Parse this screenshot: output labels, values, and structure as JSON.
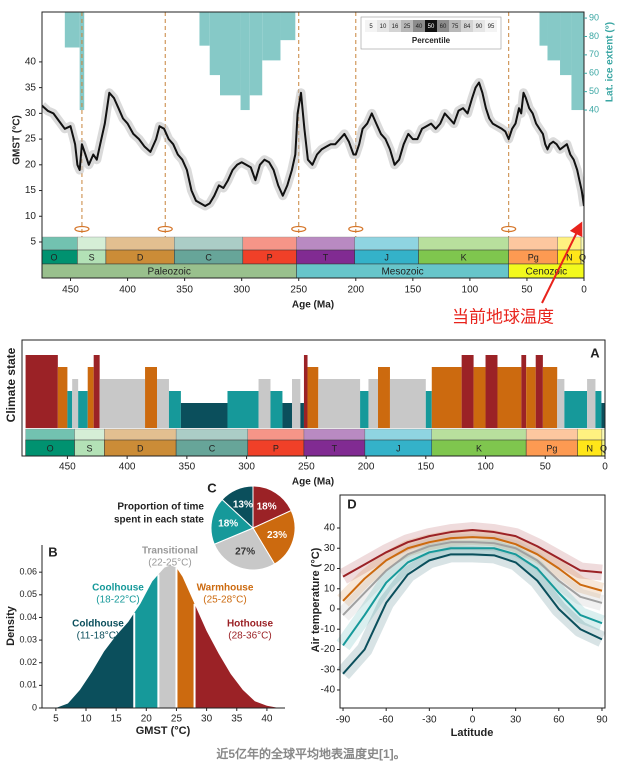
{
  "caption": "近5亿年的全球平均地表温度史[1]。",
  "chart_data": [
    {
      "type": "line",
      "y_label": "GMST (°C)",
      "x_label": "Age (Ma)",
      "y2_label": "Lat. ice extent (°)",
      "xlim": [
        475,
        0
      ],
      "xticks": [
        450,
        400,
        350,
        300,
        250,
        200,
        150,
        100,
        50,
        0
      ],
      "ylim": [
        -2,
        49.7
      ],
      "yticks": [
        5,
        10,
        15,
        20,
        25,
        30,
        35,
        40
      ],
      "y2lim": [
        -51.3,
        93.3
      ],
      "y2ticks": [
        40,
        50,
        60,
        70,
        80,
        90
      ],
      "color": "#111111",
      "x": [
        475,
        470,
        465,
        460,
        455,
        450,
        446,
        444,
        442,
        440,
        437,
        434,
        430,
        427,
        424,
        420,
        416,
        412,
        408,
        404,
        400,
        395,
        390,
        385,
        380,
        375,
        372,
        368,
        364,
        360,
        356,
        352,
        348,
        344,
        340,
        336,
        332,
        328,
        324,
        320,
        316,
        312,
        308,
        304,
        300,
        296,
        292,
        288,
        284,
        280,
        276,
        272,
        268,
        264,
        260,
        256,
        253,
        251,
        248,
        245,
        242,
        238,
        234,
        230,
        226,
        222,
        218,
        214,
        210,
        206,
        202,
        200,
        197,
        194,
        190,
        186,
        182,
        178,
        174,
        170,
        166,
        162,
        158,
        154,
        150,
        146,
        142,
        138,
        134,
        130,
        126,
        122,
        118,
        114,
        110,
        106,
        102,
        98,
        95,
        92,
        89,
        86,
        83,
        80,
        76,
        72,
        69,
        66,
        63,
        60,
        57,
        55,
        53,
        51,
        48,
        45,
        42,
        39,
        36,
        34,
        32,
        30,
        27,
        24,
        21,
        18,
        15,
        12,
        9,
        6,
        4,
        2,
        0
      ],
      "values": [
        31.5,
        30.5,
        30,
        28.5,
        27,
        27.5,
        24,
        20,
        19,
        24,
        22,
        20,
        22,
        21,
        24,
        28,
        34,
        33,
        31,
        29,
        28,
        26,
        25,
        23.5,
        22.5,
        25,
        27.5,
        27,
        25,
        24,
        22,
        21,
        19,
        15,
        13,
        12.5,
        12,
        12.5,
        14,
        16,
        15.5,
        17,
        19,
        20,
        20.5,
        20,
        19.5,
        17,
        20,
        21,
        20.5,
        19,
        16,
        14,
        16,
        19,
        22,
        30,
        34,
        27,
        21,
        20,
        22,
        23,
        23.5,
        24,
        24,
        25,
        26,
        24.5,
        22,
        22,
        24,
        27,
        28,
        30,
        28,
        26,
        25,
        23,
        20,
        21,
        24,
        26,
        25,
        25,
        27,
        27.5,
        28,
        27,
        28,
        30,
        29,
        28,
        30.5,
        31,
        30,
        33,
        35,
        36,
        34,
        31,
        29,
        28,
        27.5,
        27,
        26.5,
        25,
        27,
        28,
        31,
        30,
        34,
        33,
        31,
        30,
        28,
        27,
        26,
        24,
        23,
        24,
        24.5,
        24,
        23,
        23.5,
        24,
        22,
        21,
        19,
        17,
        15,
        12
      ],
      "ice_extent": {
        "axis": "y2",
        "color": "#86c9c7",
        "starts": [
          455,
          442,
          337,
          328,
          319,
          301,
          293,
          282,
          266,
          39,
          32,
          21,
          11
        ],
        "ends": [
          442,
          438,
          328,
          319,
          301,
          293,
          282,
          266,
          253,
          32,
          21,
          11,
          0
        ],
        "values": [
          74,
          40,
          75,
          59,
          48,
          40,
          48,
          67,
          78,
          75,
          67,
          59,
          40
        ]
      },
      "extinctions": [
        440,
        367,
        250,
        200,
        66
      ],
      "periods": {
        "labels": [
          "O",
          "S",
          "D",
          "C",
          "P",
          "T",
          "J",
          "K",
          "Pg",
          "N",
          "Q"
        ],
        "starts": [
          485,
          444,
          419,
          359,
          299,
          252,
          201,
          145,
          66,
          23,
          2.6
        ],
        "ends": [
          444,
          419,
          359,
          299,
          252,
          201,
          145,
          66,
          23,
          2.6,
          0
        ],
        "colors": [
          "#009270",
          "#b3e1b6",
          "#cb8c37",
          "#67a599",
          "#f04028",
          "#812b92",
          "#34b2c9",
          "#7fc64e",
          "#fd9a52",
          "#ffe619",
          "#f9f97f"
        ]
      },
      "eras": {
        "labels": [
          "Paleozoic",
          "Mesozoic",
          "Cenozoic"
        ],
        "starts": [
          485,
          252,
          66
        ],
        "ends": [
          252,
          66,
          0
        ],
        "colors": [
          "#99c08d",
          "#67c5ca",
          "#f2f91d"
        ]
      },
      "percentile_legend": {
        "title": "Percentile",
        "labels": [
          5,
          10,
          16,
          25,
          40,
          50,
          60,
          75,
          84,
          90,
          95
        ],
        "colors": [
          "#f4f4f4",
          "#e6e6e6",
          "#d4d4d4",
          "#b8b8b8",
          "#8c8c8c",
          "#111111",
          "#8c8c8c",
          "#b8b8b8",
          "#d4d4d4",
          "#e6e6e6",
          "#f4f4f4"
        ]
      },
      "annotation": "当前地球温度"
    },
    {
      "type": "bar",
      "label": "A",
      "y_label": "Climate state",
      "x_label": "Age (Ma)",
      "xlim": [
        488,
        0
      ],
      "xticks": [
        450,
        400,
        350,
        300,
        250,
        200,
        150,
        100,
        50,
        0
      ],
      "palette": [
        "#0b4f5c",
        "#16999a",
        "#c8c8c8",
        "#cc6a0f",
        "#9b2226"
      ],
      "starts": [
        485,
        458,
        450,
        446,
        441,
        433,
        428,
        423,
        385,
        375,
        365,
        355,
        316,
        290,
        280,
        270,
        262,
        255,
        252,
        249,
        240,
        205,
        198,
        190,
        180,
        150,
        145,
        120,
        110,
        100,
        90,
        70,
        66,
        58,
        52,
        40,
        34,
        15,
        8,
        3
      ],
      "ends": [
        458,
        450,
        446,
        441,
        433,
        428,
        423,
        385,
        375,
        365,
        355,
        316,
        290,
        280,
        270,
        262,
        255,
        252,
        249,
        240,
        205,
        198,
        190,
        180,
        150,
        145,
        120,
        110,
        100,
        90,
        70,
        66,
        58,
        52,
        40,
        34,
        15,
        8,
        3,
        0
      ],
      "values": [
        5,
        4,
        2,
        3,
        2,
        4,
        5,
        3,
        4,
        3,
        2,
        1,
        2,
        3,
        2,
        1,
        3,
        1,
        5,
        4,
        3,
        2,
        3,
        4,
        3,
        2,
        4,
        5,
        4,
        5,
        4,
        5,
        4,
        5,
        4,
        3,
        2,
        3,
        2,
        1
      ]
    },
    {
      "type": "pie",
      "label": "C",
      "title_lines": [
        "Proportion of time",
        "spent in each state"
      ],
      "values": [
        18,
        23,
        27,
        18,
        13
      ],
      "value_labels": [
        "18%",
        "23%",
        "27%",
        "18%",
        "13%"
      ],
      "colors": [
        "#9b2226",
        "#cc6a0f",
        "#c8c8c8",
        "#16999a",
        "#0b4f5c"
      ]
    },
    {
      "type": "area",
      "label": "B",
      "x_label": "GMST (°C)",
      "y_label": "Density",
      "xlim": [
        2.7,
        43
      ],
      "xticks": [
        5,
        10,
        15,
        20,
        25,
        30,
        35,
        40
      ],
      "ylim": [
        0,
        0.072
      ],
      "yticks": [
        0,
        0.01,
        0.02,
        0.03,
        0.04,
        0.05,
        0.06
      ],
      "x": [
        5,
        7,
        9,
        11,
        13,
        15,
        17,
        18,
        19,
        20,
        21,
        22,
        23,
        24,
        25,
        26,
        27,
        28,
        29,
        30,
        32,
        34,
        36,
        38,
        40,
        42
      ],
      "values": [
        0,
        0.002,
        0.008,
        0.016,
        0.025,
        0.032,
        0.038,
        0.042,
        0.046,
        0.051,
        0.056,
        0.059,
        0.062,
        0.063,
        0.062,
        0.058,
        0.052,
        0.046,
        0.04,
        0.034,
        0.024,
        0.015,
        0.008,
        0.003,
        0.001,
        0
      ],
      "boundaries": [
        18,
        22,
        25,
        28
      ],
      "states": [
        {
          "name": "Coldhouse",
          "range": "(11-18°C)",
          "color": "#0b4f5c"
        },
        {
          "name": "Coolhouse",
          "range": "(18-22°C)",
          "color": "#16999a"
        },
        {
          "name": "Transitional",
          "range": "(22-25°C)",
          "color": "#c8c8c8"
        },
        {
          "name": "Warmhouse",
          "range": "(25-28°C)",
          "color": "#cc6a0f"
        },
        {
          "name": "Hothouse",
          "range": "(28-36°C)",
          "color": "#9b2226"
        }
      ]
    },
    {
      "type": "line",
      "label": "D",
      "x_label": "Latitude",
      "y_label": "Air temperature (°C)",
      "xlim": [
        -92.1,
        92.1
      ],
      "xticks": [
        -90,
        -60,
        -30,
        0,
        30,
        60,
        90
      ],
      "ylim": [
        -48.9,
        56.3
      ],
      "yticks": [
        -40,
        -30,
        -20,
        -10,
        0,
        10,
        20,
        30,
        40
      ],
      "x": [
        -90,
        -75,
        -60,
        -45,
        -30,
        -15,
        0,
        15,
        30,
        45,
        60,
        75,
        90
      ],
      "series": [
        {
          "color": "#9b2226",
          "values": [
            16,
            22,
            28,
            33,
            36,
            38,
            39,
            38,
            36,
            31,
            25,
            19,
            18
          ]
        },
        {
          "color": "#cc6a0f",
          "values": [
            4,
            15,
            24,
            30,
            33,
            35,
            35.5,
            35,
            32,
            27,
            20,
            12,
            9
          ]
        },
        {
          "color": "#a0a0a0",
          "values": [
            -3,
            8,
            19,
            27,
            31,
            33,
            33,
            32.5,
            30,
            24,
            14,
            6,
            3
          ]
        },
        {
          "color": "#16999a",
          "values": [
            -18,
            -3,
            13,
            23,
            28,
            30,
            30,
            30,
            27,
            20,
            8,
            -3,
            -7
          ]
        },
        {
          "color": "#0b4f5c",
          "values": [
            -32,
            -20,
            3,
            17,
            24,
            27,
            27,
            26.5,
            23,
            14,
            0,
            -10,
            -15
          ]
        }
      ]
    }
  ]
}
